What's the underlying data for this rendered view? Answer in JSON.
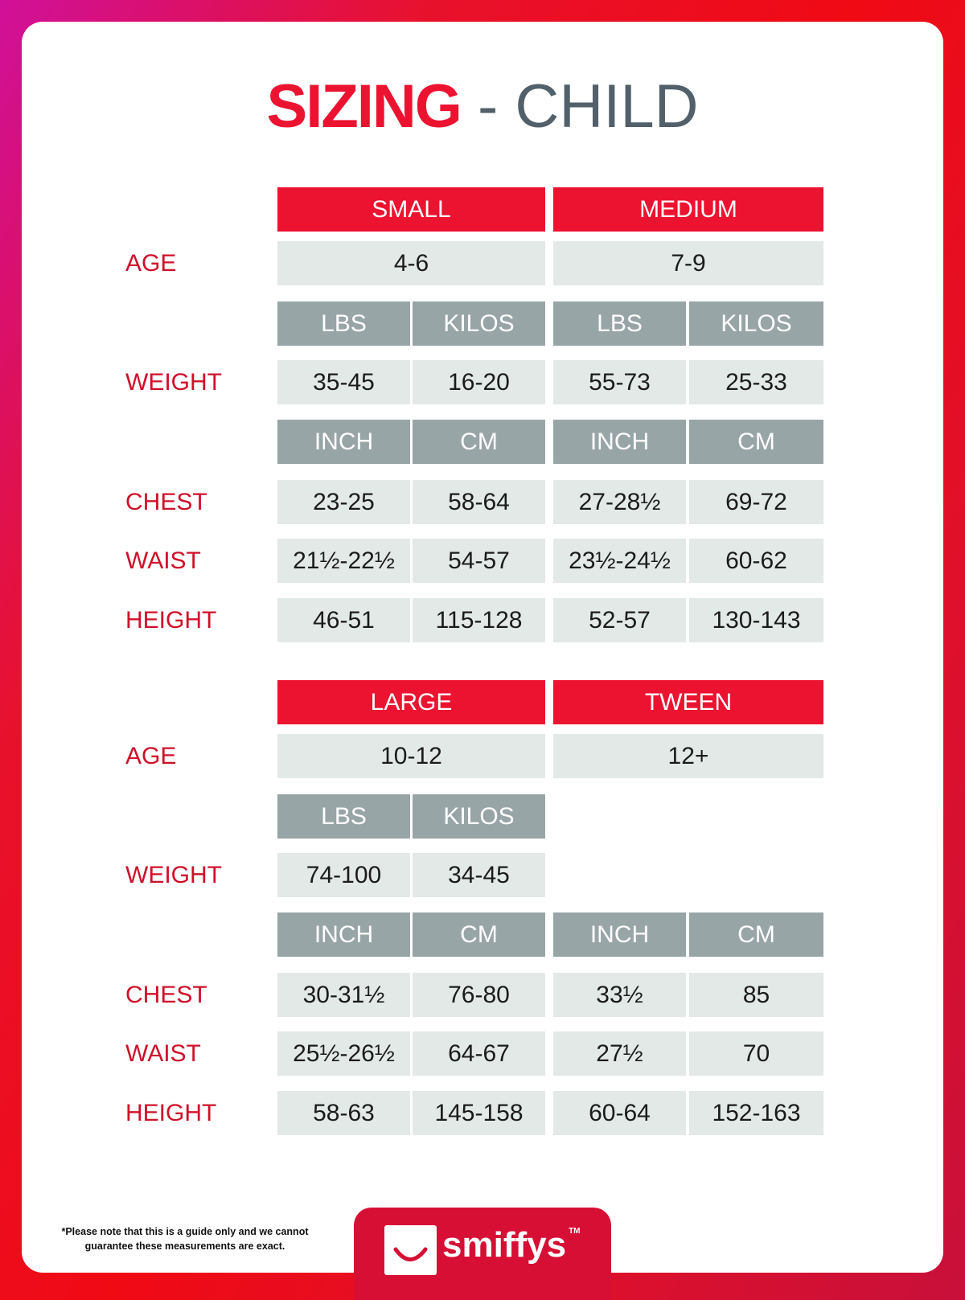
{
  "title": {
    "bold": "SIZING",
    "rest": " - CHILD"
  },
  "colors": {
    "accent": "#ec1330",
    "unit_header": "#98a5a7",
    "cell": "#e3e9e7"
  },
  "blocks": [
    {
      "sizes": [
        {
          "name": "SMALL",
          "age": "4-6",
          "weight_units": [
            "LBS",
            "KILOS"
          ],
          "weight": [
            "35-45",
            "16-20"
          ],
          "meas_units": [
            "INCH",
            "CM"
          ],
          "chest": [
            "23-25",
            "58-64"
          ],
          "waist": [
            "21½-22½",
            "54-57"
          ],
          "height": [
            "46-51",
            "115-128"
          ]
        },
        {
          "name": "MEDIUM",
          "age": "7-9",
          "weight_units": [
            "LBS",
            "KILOS"
          ],
          "weight": [
            "55-73",
            "25-33"
          ],
          "meas_units": [
            "INCH",
            "CM"
          ],
          "chest": [
            "27-28½",
            "69-72"
          ],
          "waist": [
            "23½-24½",
            "60-62"
          ],
          "height": [
            "52-57",
            "130-143"
          ]
        }
      ]
    },
    {
      "sizes": [
        {
          "name": "LARGE",
          "age": "10-12",
          "weight_units": [
            "LBS",
            "KILOS"
          ],
          "weight": [
            "74-100",
            "34-45"
          ],
          "meas_units": [
            "INCH",
            "CM"
          ],
          "chest": [
            "30-31½",
            "76-80"
          ],
          "waist": [
            "25½-26½",
            "64-67"
          ],
          "height": [
            "58-63",
            "145-158"
          ]
        },
        {
          "name": "TWEEN",
          "age": "12+",
          "meas_units": [
            "INCH",
            "CM"
          ],
          "chest": [
            "33½",
            "85"
          ],
          "waist": [
            "27½",
            "70"
          ],
          "height": [
            "60-64",
            "152-163"
          ]
        }
      ]
    }
  ],
  "row_labels": {
    "age": "AGE",
    "weight": "WEIGHT",
    "chest": "CHEST",
    "waist": "WAIST",
    "height": "HEIGHT"
  },
  "footnote": "*Please note that this is a guide only and we cannot guarantee these measurements are exact.",
  "logo": {
    "text": "smiffys",
    "tm": "TM"
  }
}
